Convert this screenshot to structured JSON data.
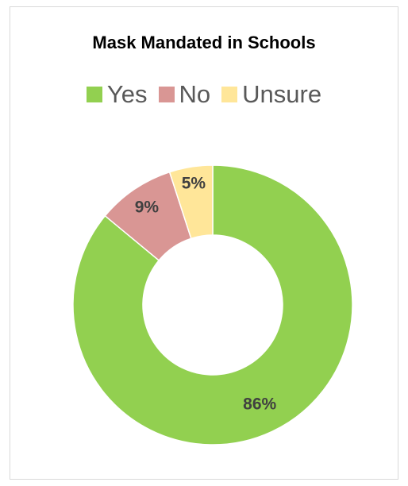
{
  "chart_data": {
    "type": "pie",
    "variant": "donut",
    "title": "Mask Mandated in Schools",
    "legend_position": "top",
    "categories": [
      "Yes",
      "No",
      "Unsure"
    ],
    "values": [
      86,
      9,
      5
    ],
    "data_labels": [
      "86%",
      "9%",
      "5%"
    ],
    "colors": [
      "#92d050",
      "#d99694",
      "#ffe699"
    ]
  }
}
